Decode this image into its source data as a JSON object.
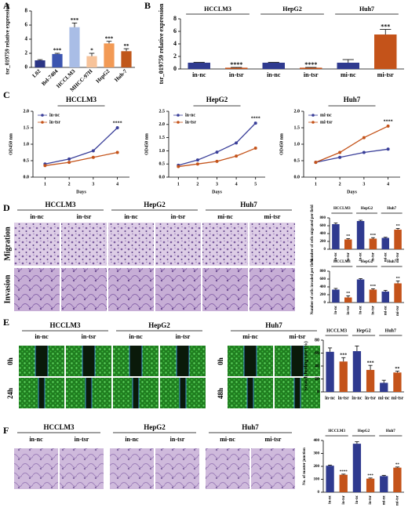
{
  "panel_letters": [
    "A",
    "B",
    "C",
    "D",
    "E",
    "F"
  ],
  "image_panels": {
    "D": {
      "groups": [
        "HCCLM3",
        "HepG2",
        "Huh7"
      ],
      "columns": [
        "in-nc",
        "in-tsr",
        "in-nc",
        "in-tsr",
        "mi-nc",
        "mi-tsr"
      ],
      "rows": [
        "Migration",
        "Invasion"
      ]
    },
    "E": {
      "groups": [
        "HCCLM3",
        "HepG2",
        "Huh7"
      ],
      "columns": [
        "in-nc",
        "in-tsr",
        "in-nc",
        "in-tsr",
        "mi-nc",
        "mi-tsr"
      ],
      "rows_left": [
        "0h",
        "24h"
      ],
      "rows_right": [
        "0h",
        "48h"
      ]
    },
    "F": {
      "groups": [
        "HCCLM3",
        "HepG2",
        "Huh7"
      ],
      "columns": [
        "in-nc",
        "in-tsr",
        "in-nc",
        "in-tsr",
        "mi-nc",
        "mi-tsr"
      ]
    }
  },
  "chart_data": [
    {
      "type": "bar",
      "ylabel": "tsr_019759 relative expression",
      "categories": [
        "L02",
        "Bel-7404",
        "HCCLM3",
        "MHCC-97H",
        "HepG2",
        "Huh-7"
      ],
      "values": [
        1,
        1.9,
        5.7,
        1.6,
        3.4,
        2.3
      ],
      "errors": [
        0.1,
        0.1,
        0.6,
        0.4,
        0.3,
        0.35
      ],
      "stars": [
        null,
        "***",
        "***",
        "*",
        "***",
        "**"
      ],
      "colors": [
        "#2b3585",
        "#3c55b0",
        "#a9bde6",
        "#f7c39a",
        "#f29a55",
        "#c0571b"
      ],
      "ylim": [
        0,
        8
      ],
      "yticks": [
        0,
        2,
        4,
        6,
        8
      ]
    },
    {
      "type": "bar",
      "ylabel": "tsr_019759 relative expression",
      "groups": [
        "HCCLM3",
        "HepG2",
        "Huh7"
      ],
      "categories": [
        "in-nc",
        "in-tsr",
        "in-nc",
        "in-tsr",
        "mi-nc",
        "mi-tsr"
      ],
      "values": [
        1,
        0.2,
        1,
        0.2,
        1,
        5.5
      ],
      "errors": [
        0.05,
        0.05,
        0.05,
        0.05,
        0.5,
        0.8
      ],
      "stars": [
        null,
        "****",
        null,
        "****",
        null,
        "***"
      ],
      "colors": [
        "#2f3a8f",
        "#c4531a",
        "#2f3a8f",
        "#c4531a",
        "#2f3a8f",
        "#c4531a"
      ],
      "ylim": [
        0,
        8
      ],
      "yticks": [
        0,
        2,
        4,
        6,
        8
      ]
    },
    {
      "type": "line",
      "title": "HCCLM3",
      "xlabel": "Days",
      "ylabel": "OD450 nm",
      "x": [
        1,
        2,
        3,
        4
      ],
      "xlim": [
        0.5,
        4.5
      ],
      "xticks": [
        1,
        2,
        3,
        4
      ],
      "ylim": [
        0,
        2
      ],
      "yticks": [
        {
          "value": 0,
          "label": "0.0"
        },
        0.5,
        {
          "value": 1,
          "label": "1.0"
        },
        1.5,
        {
          "value": 2,
          "label": "2.0"
        }
      ],
      "series": [
        {
          "name": "in-nc",
          "color": "#3a3f99",
          "values": [
            0.4,
            0.55,
            0.8,
            1.5
          ]
        },
        {
          "name": "in-tsr",
          "color": "#c4531a",
          "values": [
            0.35,
            0.45,
            0.6,
            0.75
          ]
        }
      ],
      "annotation": "****"
    },
    {
      "type": "line",
      "title": "HepG2",
      "xlabel": "Days",
      "ylabel": "OD450 nm",
      "x": [
        1,
        2,
        3,
        4,
        5
      ],
      "xlim": [
        0.5,
        5.5
      ],
      "xticks": [
        1,
        2,
        3,
        4,
        5
      ],
      "ylim": [
        0,
        2.5
      ],
      "yticks": [
        {
          "value": 0,
          "label": "0.0"
        },
        0.5,
        {
          "value": 1,
          "label": "1.0"
        },
        1.5,
        {
          "value": 2,
          "label": "2.0"
        },
        2.5
      ],
      "series": [
        {
          "name": "in-nc",
          "color": "#3a3f99",
          "values": [
            0.45,
            0.65,
            0.95,
            1.3,
            2.05
          ]
        },
        {
          "name": "in-tsr",
          "color": "#c4531a",
          "values": [
            0.4,
            0.5,
            0.6,
            0.8,
            1.1
          ]
        }
      ],
      "annotation": "****"
    },
    {
      "type": "line",
      "title": "Huh7",
      "xlabel": "Days",
      "ylabel": "OD450 nm",
      "x": [
        1,
        2,
        3,
        4
      ],
      "xlim": [
        0.5,
        4.5
      ],
      "xticks": [
        1,
        2,
        3,
        4
      ],
      "ylim": [
        0,
        2
      ],
      "yticks": [
        {
          "value": 0,
          "label": "0.0"
        },
        0.5,
        {
          "value": 1,
          "label": "1.0"
        },
        1.5,
        {
          "value": 2,
          "label": "2.0"
        }
      ],
      "series": [
        {
          "name": "mi-nc",
          "color": "#3a3f99",
          "values": [
            0.45,
            0.6,
            0.75,
            0.85
          ]
        },
        {
          "name": "mi-tsr",
          "color": "#c4531a",
          "values": [
            0.45,
            0.75,
            1.2,
            1.55
          ]
        }
      ],
      "annotation": "****"
    },
    {
      "type": "bar",
      "ylabel": "Number of cells migrated per field",
      "groups": [
        "HCCLM3",
        "HepG2",
        "Huh7"
      ],
      "categories": [
        "in-nc",
        "in-tsr",
        "in-nc",
        "in-tsr",
        "mi-nc",
        "mi-tsr"
      ],
      "values": [
        640,
        250,
        720,
        270,
        290,
        500
      ],
      "errors": [
        30,
        20,
        20,
        25,
        15,
        30
      ],
      "stars": [
        null,
        "**",
        null,
        "***",
        null,
        "**"
      ],
      "colors": [
        "#2f3a8f",
        "#c4531a",
        "#2f3a8f",
        "#c4531a",
        "#2f3a8f",
        "#c4531a"
      ],
      "ylim": [
        0,
        800
      ],
      "yticks": [
        0,
        200,
        400,
        600,
        800
      ]
    },
    {
      "type": "bar",
      "ylabel": "Number of cells invaded per field",
      "groups": [
        "HCCLM3",
        "HepG2",
        "Huh7"
      ],
      "categories": [
        "in-nc",
        "in-tsr",
        "in-nc",
        "in-tsr",
        "mi-nc",
        "mi-tsr"
      ],
      "values": [
        330,
        130,
        590,
        330,
        280,
        490
      ],
      "errors": [
        30,
        40,
        20,
        20,
        30,
        60
      ],
      "stars": [
        null,
        "**",
        null,
        "***",
        null,
        "**"
      ],
      "colors": [
        "#2f3a8f",
        "#c4531a",
        "#2f3a8f",
        "#c4531a",
        "#2f3a8f",
        "#c4531a"
      ],
      "ylim": [
        0,
        800
      ],
      "yticks": [
        0,
        200,
        400,
        600,
        800
      ]
    },
    {
      "type": "bar",
      "ylabel": "Scratch healing rate (%)",
      "groups": [
        "HCCLM3",
        "HepG2",
        "Huh7"
      ],
      "categories": [
        "in-nc",
        "in-tsr",
        "in-nc",
        "in-tsr",
        "mi-nc",
        "mi-tsr"
      ],
      "values": [
        62,
        47,
        63,
        34,
        14,
        30
      ],
      "errors": [
        6,
        6,
        8,
        7,
        4,
        2
      ],
      "stars": [
        null,
        "***",
        null,
        "***",
        null,
        "**"
      ],
      "colors": [
        "#2f3a8f",
        "#c4531a",
        "#2f3a8f",
        "#c4531a",
        "#2f3a8f",
        "#c4531a"
      ],
      "ylim": [
        0,
        80
      ],
      "yticks": [
        0,
        20,
        40,
        60,
        80
      ]
    },
    {
      "type": "bar",
      "ylabel": "No. of master junction",
      "groups": [
        "HCCLM3",
        "HepG2",
        "Huh7"
      ],
      "categories": [
        "in-nc",
        "in-tsr",
        "in-nc",
        "in-tsr",
        "mi-nc",
        "mi-tsr"
      ],
      "values": [
        205,
        135,
        375,
        105,
        125,
        190
      ],
      "errors": [
        5,
        5,
        15,
        5,
        5,
        5
      ],
      "stars": [
        null,
        "****",
        null,
        "***",
        null,
        "**"
      ],
      "colors": [
        "#2f3a8f",
        "#c4531a",
        "#2f3a8f",
        "#c4531a",
        "#2f3a8f",
        "#c4531a"
      ],
      "ylim": [
        0,
        400
      ],
      "yticks": [
        0,
        100,
        200,
        300,
        400
      ]
    }
  ]
}
